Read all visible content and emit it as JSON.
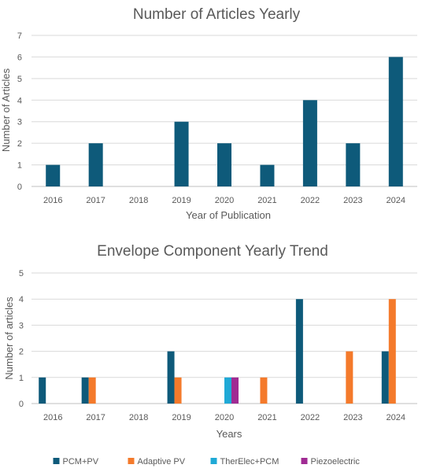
{
  "chart_data": [
    {
      "type": "bar",
      "title": "Number of Articles Yearly",
      "xlabel": "Year of Publication",
      "ylabel": "Number of Articles",
      "categories": [
        "2016",
        "2017",
        "2018",
        "2019",
        "2020",
        "2021",
        "2022",
        "2023",
        "2024"
      ],
      "series": [
        {
          "values": [
            1,
            2,
            0,
            3,
            2,
            1,
            4,
            2,
            6
          ],
          "color": "#0e5a7a"
        }
      ],
      "ylim": [
        0,
        7
      ],
      "yticks": [
        "0",
        "1",
        "2",
        "3",
        "4",
        "5",
        "6",
        "7"
      ],
      "grid": true,
      "legend": "none"
    },
    {
      "type": "bar",
      "title": "Envelope Component Yearly Trend",
      "xlabel": "Years",
      "ylabel": "Number of articles",
      "categories": [
        "2016",
        "2017",
        "2018",
        "2019",
        "2020",
        "2021",
        "2022",
        "2023",
        "2024"
      ],
      "series": [
        {
          "name": "PCM+PV",
          "color": "#0e5a7a",
          "values": [
            1,
            1,
            0,
            2,
            0,
            0,
            4,
            0,
            2
          ]
        },
        {
          "name": "Adaptive PV",
          "color": "#f47a2b",
          "values": [
            0,
            1,
            0,
            1,
            0,
            1,
            0,
            2,
            4
          ]
        },
        {
          "name": "TherElec+PCM",
          "color": "#1fa9d6",
          "values": [
            0,
            0,
            0,
            0,
            1,
            0,
            0,
            0,
            0
          ]
        },
        {
          "name": "Piezoelectric",
          "color": "#a02b93",
          "values": [
            0,
            0,
            0,
            0,
            1,
            0,
            0,
            0,
            0
          ]
        }
      ],
      "ylim": [
        0,
        5
      ],
      "yticks": [
        "0",
        "1",
        "2",
        "3",
        "4",
        "5"
      ],
      "grid": true,
      "legend": "bottom"
    }
  ]
}
